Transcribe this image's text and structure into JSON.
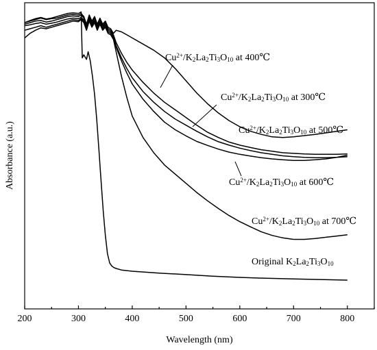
{
  "chart_data": {
    "type": "line",
    "xlabel": "Wavelength (nm)",
    "ylabel": "Absorbance (a.u.)",
    "xlim": [
      200,
      850
    ],
    "ylim": [
      0,
      1
    ],
    "xticks": [
      "200",
      "300",
      "400",
      "500",
      "600",
      "700",
      "800"
    ],
    "yticks": [],
    "grid": false,
    "legend": "inline-labels",
    "series": [
      {
        "name": "Cu2+/K2La2Ti3O10 at 400℃",
        "label_parts": [
          {
            "t": "Cu"
          },
          {
            "t": "2+",
            "s": "sup"
          },
          {
            "t": "/K"
          },
          {
            "t": "2",
            "s": "sub"
          },
          {
            "t": "La"
          },
          {
            "t": "2",
            "s": "sub"
          },
          {
            "t": "Ti"
          },
          {
            "t": "3",
            "s": "sub"
          },
          {
            "t": "O"
          },
          {
            "t": "10",
            "s": "sub"
          },
          {
            "t": " at 400℃"
          }
        ],
        "x": [
          200,
          210,
          220,
          230,
          240,
          250,
          260,
          270,
          280,
          290,
          300,
          305,
          310,
          315,
          320,
          325,
          330,
          335,
          340,
          345,
          350,
          355,
          360,
          365,
          370,
          380,
          390,
          400,
          420,
          440,
          460,
          480,
          500,
          520,
          540,
          560,
          580,
          600,
          620,
          640,
          660,
          680,
          700,
          720,
          740,
          760,
          780,
          800
        ],
        "y": [
          0.935,
          0.94,
          0.945,
          0.95,
          0.945,
          0.948,
          0.95,
          0.955,
          0.96,
          0.962,
          0.96,
          0.965,
          0.955,
          0.93,
          0.96,
          0.94,
          0.955,
          0.93,
          0.95,
          0.93,
          0.94,
          0.92,
          0.915,
          0.9,
          0.91,
          0.905,
          0.895,
          0.885,
          0.865,
          0.845,
          0.82,
          0.785,
          0.745,
          0.705,
          0.67,
          0.64,
          0.615,
          0.595,
          0.58,
          0.57,
          0.562,
          0.56,
          0.562,
          0.566,
          0.57,
          0.575,
          0.58,
          0.585
        ]
      },
      {
        "name": "Cu2+/K2La2Ti3O10 at 300℃",
        "label_parts": [
          {
            "t": "Cu"
          },
          {
            "t": "2+",
            "s": "sup"
          },
          {
            "t": "/K"
          },
          {
            "t": "2",
            "s": "sub"
          },
          {
            "t": "La"
          },
          {
            "t": "2",
            "s": "sub"
          },
          {
            "t": "Ti"
          },
          {
            "t": "3",
            "s": "sub"
          },
          {
            "t": "O"
          },
          {
            "t": "10",
            "s": "sub"
          },
          {
            "t": " at 300℃"
          }
        ],
        "x": [
          200,
          210,
          220,
          230,
          240,
          250,
          260,
          270,
          280,
          290,
          300,
          305,
          310,
          315,
          320,
          325,
          330,
          335,
          340,
          345,
          350,
          355,
          360,
          365,
          370,
          380,
          390,
          400,
          420,
          440,
          460,
          480,
          500,
          520,
          540,
          560,
          580,
          600,
          620,
          640,
          660,
          680,
          700,
          720,
          740,
          760,
          780,
          800
        ],
        "y": [
          0.93,
          0.935,
          0.94,
          0.942,
          0.937,
          0.94,
          0.945,
          0.95,
          0.955,
          0.957,
          0.955,
          0.96,
          0.95,
          0.925,
          0.955,
          0.935,
          0.95,
          0.925,
          0.945,
          0.925,
          0.935,
          0.915,
          0.91,
          0.895,
          0.87,
          0.835,
          0.805,
          0.78,
          0.74,
          0.705,
          0.675,
          0.65,
          0.625,
          0.6,
          0.577,
          0.56,
          0.545,
          0.535,
          0.527,
          0.52,
          0.515,
          0.51,
          0.508,
          0.506,
          0.505,
          0.505,
          0.505,
          0.506
        ]
      },
      {
        "name": "Cu2+/K2La2Ti3O10 at 500℃",
        "label_parts": [
          {
            "t": "Cu"
          },
          {
            "t": "2+",
            "s": "sup"
          },
          {
            "t": "/K"
          },
          {
            "t": "2",
            "s": "sub"
          },
          {
            "t": "La"
          },
          {
            "t": "2",
            "s": "sub"
          },
          {
            "t": "Ti"
          },
          {
            "t": "3",
            "s": "sub"
          },
          {
            "t": "O"
          },
          {
            "t": "10",
            "s": "sub"
          },
          {
            "t": " at 500℃"
          }
        ],
        "x": [
          200,
          210,
          220,
          230,
          240,
          250,
          260,
          270,
          280,
          290,
          300,
          305,
          310,
          315,
          320,
          325,
          330,
          335,
          340,
          345,
          350,
          355,
          360,
          365,
          370,
          380,
          390,
          400,
          420,
          440,
          460,
          480,
          500,
          520,
          540,
          560,
          580,
          600,
          620,
          640,
          660,
          680,
          700,
          720,
          740,
          760,
          780,
          800
        ],
        "y": [
          0.925,
          0.928,
          0.932,
          0.935,
          0.93,
          0.933,
          0.937,
          0.942,
          0.947,
          0.95,
          0.948,
          0.952,
          0.944,
          0.92,
          0.948,
          0.93,
          0.943,
          0.92,
          0.938,
          0.92,
          0.93,
          0.91,
          0.905,
          0.89,
          0.86,
          0.82,
          0.785,
          0.755,
          0.71,
          0.675,
          0.645,
          0.62,
          0.6,
          0.58,
          0.562,
          0.546,
          0.535,
          0.525,
          0.517,
          0.51,
          0.505,
          0.5,
          0.497,
          0.495,
          0.494,
          0.494,
          0.495,
          0.497
        ]
      },
      {
        "name": "Cu2+/K2La2Ti3O10 at 600℃",
        "label_parts": [
          {
            "t": "Cu"
          },
          {
            "t": "2+",
            "s": "sup"
          },
          {
            "t": "/K"
          },
          {
            "t": "2",
            "s": "sub"
          },
          {
            "t": "La"
          },
          {
            "t": "2",
            "s": "sub"
          },
          {
            "t": "Ti"
          },
          {
            "t": "3",
            "s": "sub"
          },
          {
            "t": "O"
          },
          {
            "t": "10",
            "s": "sub"
          },
          {
            "t": " at 600℃"
          }
        ],
        "x": [
          200,
          210,
          220,
          230,
          240,
          250,
          260,
          270,
          280,
          290,
          300,
          305,
          310,
          315,
          320,
          325,
          330,
          335,
          340,
          345,
          350,
          355,
          360,
          365,
          370,
          380,
          390,
          400,
          420,
          440,
          460,
          480,
          500,
          520,
          540,
          560,
          580,
          600,
          620,
          640,
          660,
          680,
          700,
          720,
          740,
          760,
          780,
          800
        ],
        "y": [
          0.91,
          0.915,
          0.92,
          0.925,
          0.92,
          0.925,
          0.93,
          0.935,
          0.94,
          0.945,
          0.942,
          0.948,
          0.94,
          0.915,
          0.945,
          0.925,
          0.94,
          0.915,
          0.935,
          0.915,
          0.925,
          0.905,
          0.9,
          0.885,
          0.855,
          0.81,
          0.77,
          0.735,
          0.685,
          0.645,
          0.61,
          0.585,
          0.565,
          0.547,
          0.534,
          0.522,
          0.512,
          0.505,
          0.499,
          0.494,
          0.49,
          0.487,
          0.485,
          0.485,
          0.487,
          0.49,
          0.495,
          0.502
        ]
      },
      {
        "name": "Cu2+/K2La2Ti3O10 at 700℃",
        "label_parts": [
          {
            "t": "Cu"
          },
          {
            "t": "2+",
            "s": "sup"
          },
          {
            "t": "/K"
          },
          {
            "t": "2",
            "s": "sub"
          },
          {
            "t": "La"
          },
          {
            "t": "2",
            "s": "sub"
          },
          {
            "t": "Ti"
          },
          {
            "t": "3",
            "s": "sub"
          },
          {
            "t": "O"
          },
          {
            "t": "10",
            "s": "sub"
          },
          {
            "t": " at 700℃"
          }
        ],
        "x": [
          200,
          210,
          220,
          230,
          240,
          250,
          260,
          270,
          280,
          290,
          300,
          305,
          310,
          315,
          320,
          325,
          330,
          335,
          340,
          345,
          350,
          355,
          360,
          365,
          370,
          380,
          390,
          400,
          420,
          440,
          460,
          480,
          500,
          520,
          540,
          560,
          580,
          600,
          620,
          640,
          660,
          680,
          700,
          720,
          740,
          760,
          780,
          800
        ],
        "y": [
          0.885,
          0.9,
          0.91,
          0.918,
          0.915,
          0.92,
          0.925,
          0.93,
          0.935,
          0.94,
          0.938,
          0.945,
          0.935,
          0.91,
          0.94,
          0.92,
          0.935,
          0.91,
          0.93,
          0.91,
          0.92,
          0.9,
          0.895,
          0.88,
          0.84,
          0.76,
          0.69,
          0.63,
          0.56,
          0.51,
          0.47,
          0.44,
          0.41,
          0.38,
          0.353,
          0.328,
          0.305,
          0.285,
          0.268,
          0.252,
          0.24,
          0.232,
          0.227,
          0.227,
          0.23,
          0.234,
          0.238,
          0.242
        ]
      },
      {
        "name": "Original K2La2Ti3O10",
        "label_parts": [
          {
            "t": "Original K"
          },
          {
            "t": "2",
            "s": "sub"
          },
          {
            "t": "La"
          },
          {
            "t": "2",
            "s": "sub"
          },
          {
            "t": "Ti"
          },
          {
            "t": "3",
            "s": "sub"
          },
          {
            "t": "O"
          },
          {
            "t": "10",
            "s": "sub"
          }
        ],
        "x": [
          200,
          210,
          220,
          230,
          240,
          250,
          260,
          270,
          280,
          290,
          300,
          305,
          307,
          310,
          315,
          318,
          322,
          326,
          330,
          334,
          338,
          342,
          346,
          350,
          354,
          358,
          362,
          366,
          370,
          380,
          400,
          450,
          500,
          550,
          600,
          650,
          700,
          750,
          800
        ],
        "y": [
          0.935,
          0.942,
          0.948,
          0.952,
          0.947,
          0.95,
          0.955,
          0.96,
          0.965,
          0.967,
          0.965,
          0.97,
          0.82,
          0.83,
          0.815,
          0.84,
          0.81,
          0.76,
          0.7,
          0.62,
          0.52,
          0.42,
          0.32,
          0.24,
          0.18,
          0.15,
          0.14,
          0.135,
          0.132,
          0.127,
          0.123,
          0.117,
          0.112,
          0.107,
          0.103,
          0.1,
          0.098,
          0.096,
          0.094
        ]
      }
    ]
  }
}
